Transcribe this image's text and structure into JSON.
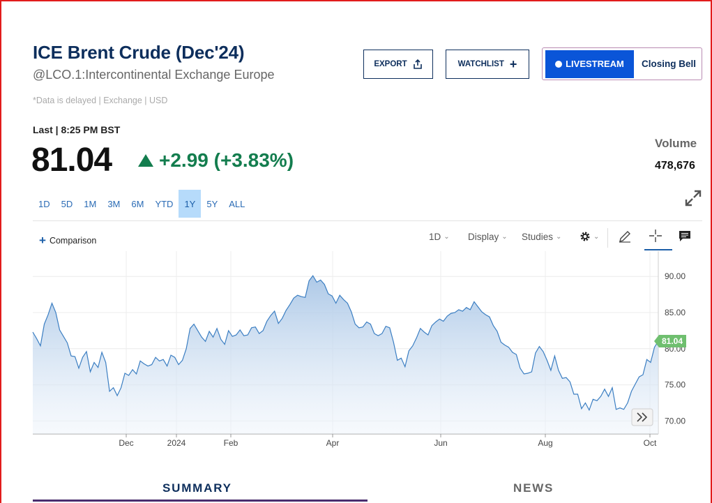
{
  "header": {
    "title": "ICE Brent Crude (Dec'24)",
    "symbol": "@LCO.1:Intercontinental Exchange Europe",
    "delayed": "*Data is delayed | Exchange | USD"
  },
  "buttons": {
    "export": "EXPORT",
    "watchlist": "WATCHLIST",
    "livestream": "LIVESTREAM",
    "live_show": "Closing Bell"
  },
  "quote": {
    "last_label": "Last | 8:25 PM BST",
    "price": "81.04",
    "change": "+2.99 (+3.83%)",
    "volume_label": "Volume",
    "volume": "478,676"
  },
  "ranges": [
    "1D",
    "5D",
    "1M",
    "3M",
    "6M",
    "YTD",
    "1Y",
    "5Y",
    "ALL"
  ],
  "active_range": "1Y",
  "toolbar": {
    "comparison": "Comparison",
    "interval": "1D",
    "display": "Display",
    "studies": "Studies"
  },
  "tabs": {
    "summary": "SUMMARY",
    "news": "NEWS"
  },
  "colors": {
    "accent": "#0d2e5c",
    "positive": "#137d4e",
    "line": "#3b7ec2",
    "price_tag": "#6fbf6f",
    "live": "#0a55d8"
  },
  "chart_data": {
    "type": "area",
    "x_ticks": [
      "Dec",
      "2024",
      "Feb",
      "Apr",
      "Jun",
      "Aug",
      "Oct"
    ],
    "y_ticks": [
      "90.00",
      "85.00",
      "80.00",
      "75.00",
      "70.00"
    ],
    "ylim": [
      68.2,
      93.5
    ],
    "last_label": "81.04",
    "grid": true,
    "series": [
      {
        "values": [
          82.3,
          81.4,
          80.4,
          83.4,
          84.7,
          86.3,
          85.0,
          82.6,
          81.7,
          80.8,
          79.0,
          78.9,
          77.3,
          78.8,
          79.6,
          76.8,
          78.1,
          77.4,
          79.5,
          78.1,
          74.1,
          74.6,
          73.5,
          74.6,
          76.6,
          76.3,
          77.1,
          76.5,
          78.3,
          77.9,
          77.6,
          77.8,
          78.8,
          78.3,
          78.5,
          77.6,
          79.1,
          78.8,
          77.8,
          78.4,
          80.0,
          82.8,
          83.4,
          82.5,
          81.6,
          81.0,
          82.4,
          81.6,
          82.8,
          81.3,
          80.6,
          82.5,
          81.7,
          81.9,
          82.6,
          81.8,
          81.9,
          82.9,
          83.0,
          82.1,
          82.5,
          83.8,
          84.6,
          85.2,
          83.5,
          84.2,
          85.3,
          86.1,
          87.0,
          87.4,
          87.2,
          87.1,
          89.4,
          90.1,
          89.2,
          89.5,
          88.9,
          87.6,
          87.3,
          86.3,
          87.4,
          86.8,
          86.3,
          85.1,
          83.4,
          82.9,
          83.0,
          83.7,
          83.4,
          82.1,
          81.8,
          82.1,
          83.1,
          82.9,
          80.9,
          78.4,
          78.7,
          77.5,
          79.7,
          80.4,
          81.5,
          82.8,
          82.3,
          81.9,
          83.2,
          83.7,
          84.1,
          83.8,
          84.5,
          84.9,
          85.0,
          85.4,
          85.2,
          85.7,
          85.4,
          86.5,
          85.8,
          85.1,
          84.7,
          84.4,
          83.2,
          82.4,
          80.9,
          80.5,
          80.2,
          79.5,
          79.2,
          77.3,
          76.5,
          76.6,
          76.8,
          79.4,
          80.3,
          79.6,
          78.4,
          77.0,
          79.0,
          77.0,
          75.9,
          76.0,
          75.4,
          73.7,
          73.7,
          71.7,
          72.5,
          71.5,
          73.0,
          72.8,
          73.4,
          74.4,
          73.4,
          74.6,
          71.6,
          71.8,
          71.6,
          72.5,
          74.1,
          75.1,
          76.1,
          76.4,
          78.5,
          78.1,
          80.2,
          81.04
        ]
      }
    ]
  }
}
